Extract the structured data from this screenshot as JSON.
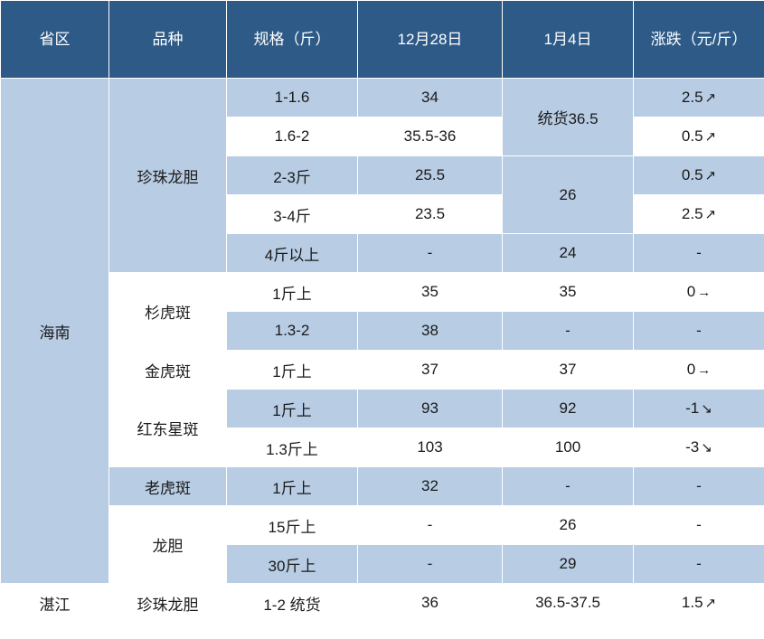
{
  "header": {
    "province": "省区",
    "variety": "品种",
    "spec": "规格（斤）",
    "date1": "12月28日",
    "date2": "1月4日",
    "change": "涨跌（元/斤）"
  },
  "arrows": {
    "up": "↗",
    "down": "↘",
    "flat": "→"
  },
  "provinces": {
    "hainan": "海南",
    "zhanjiang": "湛江"
  },
  "varieties": {
    "zhenzhu": "珍珠龙胆",
    "shanhu": "杉虎斑",
    "jinhu": "金虎斑",
    "hongdong": "红东星斑",
    "laohu": "老虎斑",
    "longdan": "龙胆"
  },
  "cells": {
    "r0": {
      "spec": "1-1.6",
      "d1": "34",
      "d2": "统货36.5",
      "chg": "2.5",
      "dir": "up"
    },
    "r1": {
      "spec": "1.6-2",
      "d1": "35.5-36",
      "chg": "0.5",
      "dir": "up"
    },
    "r2": {
      "spec": "2-3斤",
      "d1": "25.5",
      "d2": "26",
      "chg": "0.5",
      "dir": "up"
    },
    "r3": {
      "spec": "3-4斤",
      "d1": "23.5",
      "chg": "2.5",
      "dir": "up"
    },
    "r4": {
      "spec": "4斤以上",
      "d1": "-",
      "d2": "24",
      "chg": "-",
      "dir": "none"
    },
    "r5": {
      "spec": "1斤上",
      "d1": "35",
      "d2": "35",
      "chg": "0",
      "dir": "flat"
    },
    "r6": {
      "spec": "1.3-2",
      "d1": "38",
      "d2": "-",
      "chg": "-",
      "dir": "none"
    },
    "r7": {
      "spec": "1斤上",
      "d1": "37",
      "d2": "37",
      "chg": "0",
      "dir": "flat"
    },
    "r8": {
      "spec": "1斤上",
      "d1": "93",
      "d2": "92",
      "chg": "-1",
      "dir": "down"
    },
    "r9": {
      "spec": "1.3斤上",
      "d1": "103",
      "d2": "100",
      "chg": "-3",
      "dir": "down"
    },
    "r10": {
      "spec": "1斤上",
      "d1": "32",
      "d2": "-",
      "chg": "-",
      "dir": "none"
    },
    "r11": {
      "spec": "15斤上",
      "d1": "-",
      "d2": "26",
      "chg": "-",
      "dir": "none"
    },
    "r12": {
      "spec": "30斤上",
      "d1": "-",
      "d2": "29",
      "chg": "-",
      "dir": "none"
    },
    "r13": {
      "spec": "1-2 统货",
      "d1": "36",
      "d2": "36.5-37.5",
      "chg": "1.5",
      "dir": "up"
    }
  }
}
